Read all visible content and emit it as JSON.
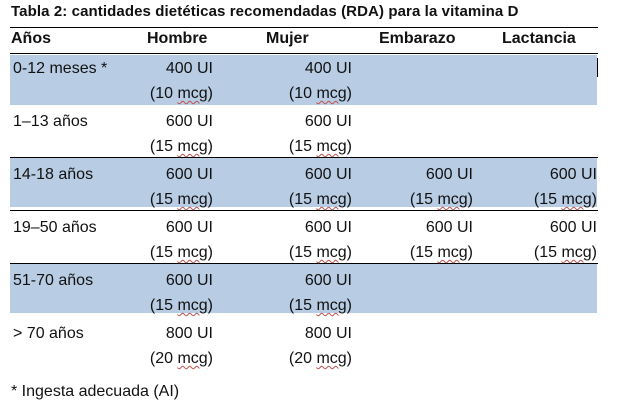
{
  "title": "Tabla 2: cantidades dietéticas recomendadas (RDA) para la vitamina D",
  "headers": [
    "Años",
    "Hombre",
    "Mujer",
    "Embarazo",
    "Lactancia"
  ],
  "rows": [
    {
      "age": "0-12 meses *",
      "male": [
        "400 UI",
        "(10 mcg)"
      ],
      "female": [
        "400 UI",
        "(10 mcg)"
      ],
      "pregnancy": [
        "",
        ""
      ],
      "lactation": [
        "",
        ""
      ],
      "shaded": true
    },
    {
      "age": "1–13 años",
      "male": [
        "600 UI",
        "(15 mcg)"
      ],
      "female": [
        "600 UI",
        "(15 mcg)"
      ],
      "pregnancy": [
        "",
        ""
      ],
      "lactation": [
        "",
        ""
      ],
      "shaded": false
    },
    {
      "age": "14-18 años",
      "male": [
        "600 UI",
        "(15 mcg)"
      ],
      "female": [
        "600 UI",
        "(15 mcg)"
      ],
      "pregnancy": [
        "600 UI",
        "(15 mcg)"
      ],
      "lactation": [
        "600 UI",
        "(15 mcg)"
      ],
      "shaded": true
    },
    {
      "age": "19–50 años",
      "male": [
        "600 UI",
        "(15 mcg)"
      ],
      "female": [
        "600 UI",
        "(15 mcg)"
      ],
      "pregnancy": [
        "600 UI",
        "(15 mcg)"
      ],
      "lactation": [
        "600 UI",
        "(15 mcg)"
      ],
      "shaded": false
    },
    {
      "age": "51-70 años",
      "male": [
        "600 UI",
        "(15 mcg)"
      ],
      "female": [
        "600 UI",
        "(15 mcg)"
      ],
      "pregnancy": [
        "",
        ""
      ],
      "lactation": [
        "",
        ""
      ],
      "shaded": true
    },
    {
      "age": "> 70 años",
      "male": [
        "800 UI",
        "(20 mcg)"
      ],
      "female": [
        "800 UI",
        "(20 mcg)"
      ],
      "pregnancy": [
        "",
        ""
      ],
      "lactation": [
        "",
        ""
      ],
      "shaded": false
    }
  ],
  "footnote": "* Ingesta adecuada (AI)",
  "colors": {
    "row_shade": "#b8cce4",
    "spellcheck_underline": "#c0504d"
  }
}
